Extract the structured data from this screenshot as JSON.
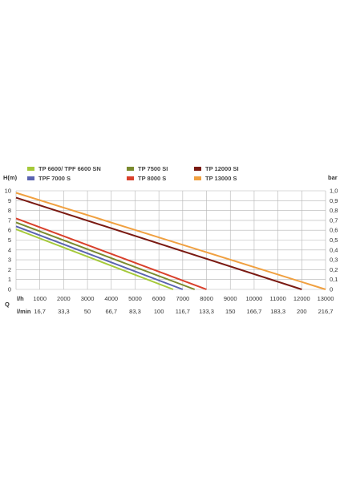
{
  "chart_data": {
    "type": "line",
    "ylabel_left": "H(m)",
    "ylabel_right": "bar",
    "xlabel": "Q",
    "x_row_label_lh": "l/h",
    "x_row_label_lmin": "l/min",
    "xlim": [
      0,
      13000
    ],
    "ylim": [
      0,
      10
    ],
    "ylim_right": [
      0,
      1.0
    ],
    "grid": true,
    "legend_position": "top",
    "x_ticks_lh": [
      "1000",
      "2000",
      "3000",
      "4000",
      "5000",
      "6000",
      "7000",
      "8000",
      "9000",
      "10000",
      "11000",
      "12000",
      "13000"
    ],
    "x_ticks_lmin": [
      "16,7",
      "33,3",
      "50",
      "66,7",
      "83,3",
      "100",
      "116,7",
      "133,3",
      "150",
      "166,7",
      "183,3",
      "200",
      "216,7"
    ],
    "y_ticks_left": [
      "0",
      "1",
      "2",
      "3",
      "4",
      "5",
      "6",
      "7",
      "8",
      "9",
      "10"
    ],
    "y_ticks_right": [
      "0",
      "0,1",
      "0,2",
      "0,3",
      "0,4",
      "0,5",
      "0,6",
      "0,7",
      "0,8",
      "0,9",
      "1,0"
    ],
    "series": [
      {
        "name": "TP 6600/ TPF 6600 SN",
        "color": "#a5c93a",
        "x": [
          0,
          6600
        ],
        "y": [
          6.1,
          0
        ]
      },
      {
        "name": "TPF 7000 S",
        "color": "#5a63b0",
        "x": [
          0,
          7000
        ],
        "y": [
          6.4,
          0
        ]
      },
      {
        "name": "TP 7500 SI",
        "color": "#7a8a2e",
        "x": [
          0,
          7500
        ],
        "y": [
          6.8,
          0
        ]
      },
      {
        "name": "TP 8000 S",
        "color": "#d9402b",
        "x": [
          0,
          8000
        ],
        "y": [
          7.2,
          0
        ]
      },
      {
        "name": "TP 12000 SI",
        "color": "#7a1a12",
        "x": [
          0,
          12000
        ],
        "y": [
          9.3,
          0
        ]
      },
      {
        "name": "TP 13000 S",
        "color": "#f0a040",
        "x": [
          0,
          13000
        ],
        "y": [
          9.8,
          0
        ]
      }
    ]
  }
}
